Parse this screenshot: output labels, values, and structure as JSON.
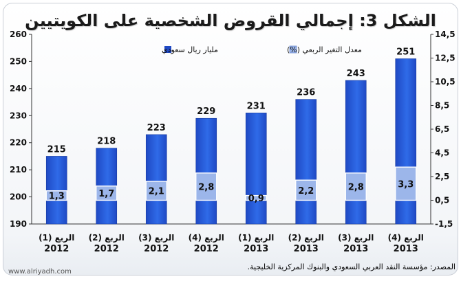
{
  "title": "الشكل 3: إجمالي القروض الشخصية على الكويتيين",
  "source": "المصدر: مؤسسة النقد العربي السعودي والبنوك المركزية الخليجية.",
  "watermark": "www.alriyadh.com",
  "colors": {
    "bar_dark": "#1f49c4",
    "bar_light": "#2f6be8",
    "segment": "#9cb6ea",
    "segment_border": "#ffffff"
  },
  "chart_data": {
    "type": "bar",
    "categories": [
      [
        "الربع (1)",
        "2012"
      ],
      [
        "الربع (2)",
        "2012"
      ],
      [
        "الربع (3)",
        "2012"
      ],
      [
        "الربع (4)",
        "2012"
      ],
      [
        "الربع (1)",
        "2013"
      ],
      [
        "الربع (2)",
        "2013"
      ],
      [
        "الربع (3)",
        "2013"
      ],
      [
        "الربع (4)",
        "2013"
      ]
    ],
    "series": [
      {
        "name": "مليار ريال سعودي",
        "axis": "left",
        "values": [
          215,
          218,
          223,
          229,
          231,
          236,
          243,
          251
        ],
        "labels": [
          "215",
          "218",
          "223",
          "229",
          "231",
          "236",
          "243",
          "251"
        ]
      },
      {
        "name": "معدل التغير الربعي (%)",
        "axis": "right",
        "values": [
          1.3,
          1.7,
          2.1,
          2.8,
          0.9,
          2.2,
          2.8,
          3.3
        ],
        "labels": [
          "1,3",
          "1,7",
          "2,1",
          "2,8",
          "0,9",
          "2,2",
          "2,8",
          "3,3"
        ]
      }
    ],
    "y_left": {
      "min": 190,
      "max": 260,
      "ticks": [
        "190",
        "200",
        "210",
        "220",
        "230",
        "240",
        "250",
        "260"
      ]
    },
    "y_right": {
      "min": -1.5,
      "max": 14.5,
      "ticks": [
        "-1,5",
        "0,5",
        "2,5",
        "4,5",
        "6,5",
        "8,5",
        "10,5",
        "12,5",
        "14,5"
      ]
    },
    "segment_base": 0.5,
    "legend_position": "top-left",
    "grid": false
  }
}
